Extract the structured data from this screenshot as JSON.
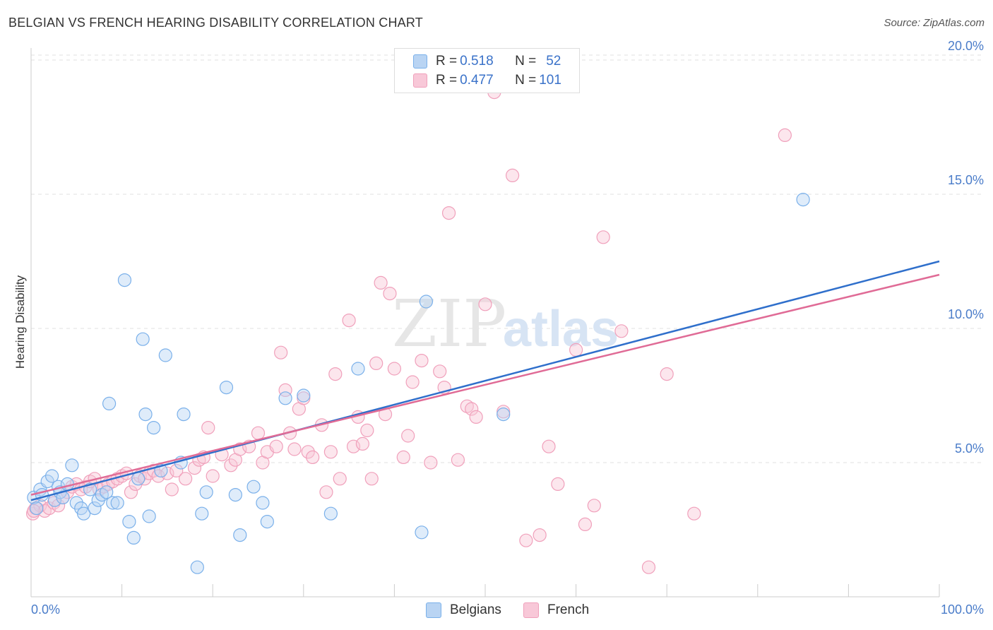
{
  "header": {
    "title": "BELGIAN VS FRENCH HEARING DISABILITY CORRELATION CHART",
    "source": "Source: ZipAtlas.com"
  },
  "watermark": {
    "text_zip": "ZIP",
    "text_atlas": "atlas"
  },
  "legend": {
    "rows": [
      {
        "r_label": "R = ",
        "r_value": "0.518",
        "n_label": "N = ",
        "n_value": "52",
        "color": "#7ab0ea",
        "fill": "#b9d4f3"
      },
      {
        "r_label": "R = ",
        "r_value": "0.477",
        "n_label": "N = ",
        "n_value": "101",
        "color": "#f0a0bb",
        "fill": "#f8c8d8"
      }
    ],
    "series_names": [
      "Belgians",
      "French"
    ]
  },
  "chart_data": {
    "type": "scatter",
    "title": "BELGIAN VS FRENCH HEARING DISABILITY CORRELATION CHART",
    "xlabel": "",
    "ylabel": "Hearing Disability",
    "xlim": [
      0,
      100
    ],
    "ylim": [
      0,
      20.5
    ],
    "y_ticks": [
      5,
      10,
      15,
      20
    ],
    "y_tick_labels": [
      "5.0%",
      "10.0%",
      "15.0%",
      "20.0%"
    ],
    "x_tick_labels": [
      "0.0%",
      "100.0%"
    ],
    "grid": true,
    "legend_position": "top-center",
    "series": [
      {
        "name": "Belgians",
        "color": "#7ab0ea",
        "line_color": "#2f6fcb",
        "trend": {
          "x": [
            0,
            100
          ],
          "y": [
            3.6,
            12.5
          ]
        },
        "points": [
          [
            0.3,
            3.7
          ],
          [
            0.6,
            3.3
          ],
          [
            1,
            4.0
          ],
          [
            1.2,
            3.8
          ],
          [
            1.8,
            4.3
          ],
          [
            2.3,
            4.5
          ],
          [
            2.6,
            3.6
          ],
          [
            3,
            4.1
          ],
          [
            3.2,
            3.9
          ],
          [
            3.5,
            3.7
          ],
          [
            4,
            4.2
          ],
          [
            4.5,
            4.9
          ],
          [
            5,
            3.5
          ],
          [
            5.5,
            3.3
          ],
          [
            5.8,
            3.1
          ],
          [
            6.5,
            4.0
          ],
          [
            7,
            3.3
          ],
          [
            7.4,
            3.6
          ],
          [
            7.8,
            3.8
          ],
          [
            8.3,
            3.9
          ],
          [
            8.6,
            7.2
          ],
          [
            9,
            3.5
          ],
          [
            9.5,
            3.5
          ],
          [
            10.3,
            11.8
          ],
          [
            10.8,
            2.8
          ],
          [
            11.3,
            2.2
          ],
          [
            11.8,
            4.4
          ],
          [
            12.3,
            9.6
          ],
          [
            12.6,
            6.8
          ],
          [
            13,
            3.0
          ],
          [
            13.5,
            6.3
          ],
          [
            14.3,
            4.7
          ],
          [
            14.8,
            9.0
          ],
          [
            16.5,
            5.0
          ],
          [
            16.8,
            6.8
          ],
          [
            18.3,
            1.1
          ],
          [
            18.8,
            3.1
          ],
          [
            19.3,
            3.9
          ],
          [
            21.5,
            7.8
          ],
          [
            22.5,
            3.8
          ],
          [
            23,
            2.3
          ],
          [
            24.5,
            4.1
          ],
          [
            25.5,
            3.5
          ],
          [
            26,
            2.8
          ],
          [
            28,
            7.4
          ],
          [
            30,
            7.5
          ],
          [
            33,
            3.1
          ],
          [
            36,
            8.5
          ],
          [
            43,
            2.4
          ],
          [
            43.5,
            11.0
          ],
          [
            52,
            6.8
          ],
          [
            85,
            14.8
          ]
        ]
      },
      {
        "name": "French",
        "color": "#f0a0bb",
        "line_color": "#e06b96",
        "trend": {
          "x": [
            0,
            100
          ],
          "y": [
            3.8,
            12.0
          ]
        },
        "points": [
          [
            0.2,
            3.1
          ],
          [
            0.5,
            3.3
          ],
          [
            1,
            3.4
          ],
          [
            1.5,
            3.2
          ],
          [
            2,
            3.3
          ],
          [
            2.5,
            3.5
          ],
          [
            3,
            3.4
          ],
          [
            3.5,
            3.7
          ],
          [
            4,
            3.9
          ],
          [
            4.5,
            4.1
          ],
          [
            5,
            4.2
          ],
          [
            5.5,
            4.0
          ],
          [
            6,
            4.1
          ],
          [
            6.5,
            4.3
          ],
          [
            7,
            4.4
          ],
          [
            7.5,
            4.0
          ],
          [
            8,
            4.1
          ],
          [
            8.5,
            4.2
          ],
          [
            9,
            4.3
          ],
          [
            9.5,
            4.4
          ],
          [
            10,
            4.5
          ],
          [
            10.5,
            4.6
          ],
          [
            11,
            3.9
          ],
          [
            11.5,
            4.2
          ],
          [
            12,
            4.5
          ],
          [
            12.5,
            4.4
          ],
          [
            13,
            4.6
          ],
          [
            13.5,
            4.7
          ],
          [
            14,
            4.5
          ],
          [
            15,
            4.6
          ],
          [
            15.5,
            4.0
          ],
          [
            16,
            4.7
          ],
          [
            17,
            4.4
          ],
          [
            18,
            4.8
          ],
          [
            18.5,
            5.1
          ],
          [
            19,
            5.2
          ],
          [
            19.5,
            6.3
          ],
          [
            20,
            4.5
          ],
          [
            21,
            5.3
          ],
          [
            22,
            4.9
          ],
          [
            22.5,
            5.1
          ],
          [
            23,
            5.5
          ],
          [
            24,
            5.6
          ],
          [
            25,
            6.1
          ],
          [
            25.5,
            5.0
          ],
          [
            26,
            5.4
          ],
          [
            27,
            5.6
          ],
          [
            27.5,
            9.1
          ],
          [
            28,
            7.7
          ],
          [
            28.5,
            6.1
          ],
          [
            29,
            5.5
          ],
          [
            29.5,
            7.0
          ],
          [
            30,
            7.4
          ],
          [
            30.5,
            5.4
          ],
          [
            31,
            5.2
          ],
          [
            32,
            6.4
          ],
          [
            32.5,
            3.9
          ],
          [
            33,
            5.4
          ],
          [
            33.5,
            8.3
          ],
          [
            34,
            4.4
          ],
          [
            35,
            10.3
          ],
          [
            35.5,
            5.6
          ],
          [
            36,
            6.7
          ],
          [
            36.5,
            5.7
          ],
          [
            37,
            6.2
          ],
          [
            37.5,
            4.4
          ],
          [
            38,
            8.7
          ],
          [
            38.5,
            11.7
          ],
          [
            39,
            6.8
          ],
          [
            39.5,
            11.3
          ],
          [
            40,
            8.5
          ],
          [
            41,
            5.2
          ],
          [
            41.5,
            6.0
          ],
          [
            42,
            8.0
          ],
          [
            43,
            8.8
          ],
          [
            44,
            5.0
          ],
          [
            45,
            8.4
          ],
          [
            45.5,
            7.8
          ],
          [
            46,
            14.3
          ],
          [
            47,
            5.1
          ],
          [
            48,
            7.1
          ],
          [
            48.5,
            7.0
          ],
          [
            49,
            6.7
          ],
          [
            50,
            10.9
          ],
          [
            51,
            18.8
          ],
          [
            52,
            6.9
          ],
          [
            53,
            15.7
          ],
          [
            54.5,
            2.1
          ],
          [
            56,
            2.3
          ],
          [
            57,
            5.6
          ],
          [
            58,
            4.2
          ],
          [
            60,
            9.2
          ],
          [
            61,
            2.7
          ],
          [
            62,
            3.4
          ],
          [
            63,
            13.4
          ],
          [
            65,
            9.9
          ],
          [
            68,
            1.1
          ],
          [
            70,
            8.3
          ],
          [
            73,
            3.1
          ],
          [
            83,
            17.2
          ],
          [
            0.3,
            3.2
          ]
        ]
      }
    ]
  }
}
